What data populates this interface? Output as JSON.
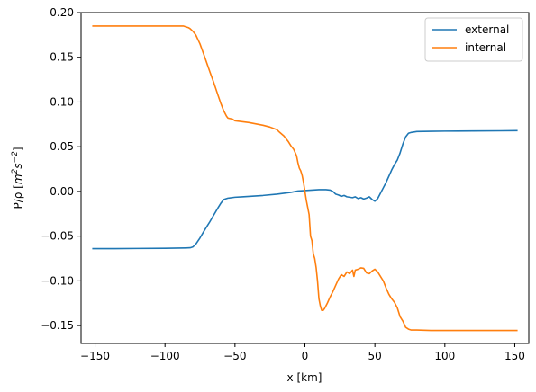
{
  "chart_data": {
    "type": "line",
    "title": "",
    "xlabel": "x [km]",
    "ylabel": "P/ρ [m²s⁻²]",
    "ylabel_parts": {
      "base": "P/ρ [",
      "m": "m",
      "two": "2",
      "s": "s",
      "minus_two": "−2",
      "close": "]"
    },
    "xlim": [
      -160,
      160
    ],
    "ylim": [
      -0.17,
      0.2
    ],
    "xticks": [
      {
        "value": -150,
        "label": "−150"
      },
      {
        "value": -100,
        "label": "−100"
      },
      {
        "value": -50,
        "label": "−50"
      },
      {
        "value": 0,
        "label": "0"
      },
      {
        "value": 50,
        "label": "50"
      },
      {
        "value": 100,
        "label": "100"
      },
      {
        "value": 150,
        "label": "150"
      }
    ],
    "yticks": [
      {
        "value": -0.15,
        "label": "−0.15"
      },
      {
        "value": -0.1,
        "label": "−0.10"
      },
      {
        "value": -0.05,
        "label": "−0.05"
      },
      {
        "value": 0.0,
        "label": "0.00"
      },
      {
        "value": 0.05,
        "label": "0.05"
      },
      {
        "value": 0.1,
        "label": "0.10"
      },
      {
        "value": 0.15,
        "label": "0.15"
      },
      {
        "value": 0.2,
        "label": "0.20"
      }
    ],
    "grid": false,
    "legend_position": "top-right",
    "series": [
      {
        "name": "external",
        "color": "#1f77b4",
        "x": [
          -152,
          -140,
          -120,
          -100,
          -90,
          -85,
          -82,
          -80,
          -78,
          -75,
          -72,
          -70,
          -68,
          -65,
          -62,
          -60,
          -58,
          -56,
          -55,
          -50,
          -45,
          -40,
          -30,
          -20,
          -10,
          -5,
          0,
          5,
          10,
          15,
          18,
          20,
          22,
          24,
          26,
          28,
          30,
          32,
          34,
          36,
          38,
          40,
          42,
          44,
          46,
          48,
          50,
          52,
          54,
          56,
          58,
          60,
          62,
          64,
          66,
          68,
          70,
          72,
          74,
          76,
          78,
          80,
          90,
          100,
          120,
          140,
          152
        ],
        "y": [
          -0.064,
          -0.064,
          -0.0638,
          -0.0636,
          -0.0634,
          -0.0632,
          -0.063,
          -0.062,
          -0.059,
          -0.052,
          -0.044,
          -0.039,
          -0.034,
          -0.026,
          -0.018,
          -0.013,
          -0.009,
          -0.008,
          -0.0075,
          -0.0065,
          -0.006,
          -0.0055,
          -0.0045,
          -0.003,
          -0.001,
          0.0005,
          0.001,
          0.0015,
          0.002,
          0.002,
          0.0015,
          0.0,
          -0.003,
          -0.004,
          -0.0055,
          -0.0045,
          -0.006,
          -0.0065,
          -0.007,
          -0.006,
          -0.008,
          -0.007,
          -0.0085,
          -0.0075,
          -0.006,
          -0.009,
          -0.011,
          -0.008,
          -0.002,
          0.004,
          0.01,
          0.017,
          0.024,
          0.03,
          0.035,
          0.043,
          0.053,
          0.061,
          0.065,
          0.066,
          0.0665,
          0.067,
          0.0672,
          0.0674,
          0.0676,
          0.0678,
          0.068
        ]
      },
      {
        "name": "internal",
        "color": "#ff7f0e",
        "x": [
          -152,
          -140,
          -120,
          -100,
          -90,
          -87,
          -85,
          -83,
          -82,
          -80,
          -78,
          -75,
          -72,
          -70,
          -68,
          -65,
          -62,
          -60,
          -58,
          -56,
          -55,
          -52,
          -50,
          -45,
          -40,
          -35,
          -30,
          -25,
          -20,
          -18,
          -15,
          -12,
          -10,
          -8,
          -6,
          -5,
          -4,
          -3,
          -2,
          -1,
          0,
          1,
          2,
          3,
          4,
          5,
          6,
          7,
          8,
          9,
          10,
          11,
          12,
          13,
          14,
          15,
          16,
          18,
          20,
          22,
          24,
          26,
          28,
          30,
          32,
          34,
          35,
          36,
          38,
          40,
          42,
          44,
          46,
          48,
          50,
          52,
          54,
          56,
          58,
          60,
          62,
          64,
          66,
          68,
          70,
          72,
          74,
          76,
          80,
          90,
          100,
          120,
          140,
          152
        ],
        "y": [
          0.185,
          0.185,
          0.185,
          0.185,
          0.185,
          0.185,
          0.184,
          0.183,
          0.182,
          0.179,
          0.175,
          0.165,
          0.152,
          0.143,
          0.134,
          0.121,
          0.107,
          0.098,
          0.09,
          0.084,
          0.082,
          0.081,
          0.079,
          0.078,
          0.077,
          0.0755,
          0.074,
          0.072,
          0.069,
          0.066,
          0.062,
          0.056,
          0.051,
          0.047,
          0.04,
          0.032,
          0.026,
          0.023,
          0.018,
          0.01,
          0.0,
          -0.01,
          -0.018,
          -0.026,
          -0.05,
          -0.055,
          -0.07,
          -0.075,
          -0.085,
          -0.1,
          -0.12,
          -0.128,
          -0.133,
          -0.133,
          -0.131,
          -0.128,
          -0.125,
          -0.118,
          -0.112,
          -0.105,
          -0.098,
          -0.093,
          -0.095,
          -0.09,
          -0.092,
          -0.088,
          -0.095,
          -0.088,
          -0.087,
          -0.0855,
          -0.086,
          -0.091,
          -0.092,
          -0.089,
          -0.087,
          -0.09,
          -0.095,
          -0.1,
          -0.108,
          -0.115,
          -0.12,
          -0.124,
          -0.13,
          -0.14,
          -0.145,
          -0.152,
          -0.154,
          -0.155,
          -0.155,
          -0.1555,
          -0.1555,
          -0.1555,
          -0.1555,
          -0.1555
        ]
      }
    ]
  }
}
